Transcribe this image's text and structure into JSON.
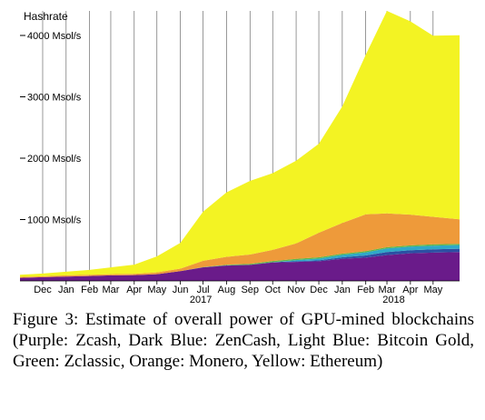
{
  "caption": "Figure 3:  Estimate of overall power of GPU-mined blockchains (Purple: Zcash, Dark Blue: ZenCash, Light Blue: Bitcoin Gold, Green: Zclassic, Orange: Monero, Yellow: Ethereum)",
  "chart_data": {
    "type": "area",
    "stacked": true,
    "ylabel": "Hashrate",
    "ylim": [
      0,
      4400
    ],
    "yticks": [
      1000,
      2000,
      3000,
      4000
    ],
    "ytick_labels": [
      "1000 Msol/s",
      "2000 Msol/s",
      "3000 Msol/s",
      "4000 Msol/s"
    ],
    "grid": "vertical",
    "x_start": "2016-11-01",
    "x_end": "2018-06-05",
    "x_ticks": [
      {
        "date": "2016-12-01",
        "label": "Dec"
      },
      {
        "date": "2017-01-01",
        "label": "Jan"
      },
      {
        "date": "2017-02-01",
        "label": "Feb"
      },
      {
        "date": "2017-03-01",
        "label": "Mar"
      },
      {
        "date": "2017-04-01",
        "label": "Apr"
      },
      {
        "date": "2017-05-01",
        "label": "May"
      },
      {
        "date": "2017-06-01",
        "label": "Jun"
      },
      {
        "date": "2017-07-01",
        "label": "Jul"
      },
      {
        "date": "2017-08-01",
        "label": "Aug"
      },
      {
        "date": "2017-09-01",
        "label": "Sep"
      },
      {
        "date": "2017-10-01",
        "label": "Oct"
      },
      {
        "date": "2017-11-01",
        "label": "Nov"
      },
      {
        "date": "2017-12-01",
        "label": "Dec"
      },
      {
        "date": "2018-01-01",
        "label": "Jan"
      },
      {
        "date": "2018-02-01",
        "label": "Feb"
      },
      {
        "date": "2018-03-01",
        "label": "Mar"
      },
      {
        "date": "2018-04-01",
        "label": "Apr"
      },
      {
        "date": "2018-05-01",
        "label": "May"
      }
    ],
    "year_labels": [
      {
        "date": "2017-06-28",
        "label": "2017"
      },
      {
        "date": "2018-03-10",
        "label": "2018"
      }
    ],
    "x": [
      "2016-11-01",
      "2016-12-01",
      "2017-01-01",
      "2017-02-01",
      "2017-03-01",
      "2017-04-01",
      "2017-05-01",
      "2017-06-01",
      "2017-07-01",
      "2017-08-01",
      "2017-09-01",
      "2017-10-01",
      "2017-11-01",
      "2017-12-01",
      "2018-01-01",
      "2018-02-01",
      "2018-03-01",
      "2018-04-01",
      "2018-05-01",
      "2018-06-05"
    ],
    "series": [
      {
        "name": "Zcash",
        "color": "#6a1b8a",
        "values": [
          50,
          60,
          70,
          80,
          90,
          95,
          110,
          160,
          220,
          250,
          260,
          300,
          310,
          320,
          360,
          380,
          420,
          450,
          460,
          470
        ]
      },
      {
        "name": "ZenCash",
        "color": "#2c4fa3",
        "values": [
          0,
          0,
          0,
          0,
          0,
          0,
          0,
          0,
          2,
          3,
          4,
          5,
          10,
          15,
          25,
          35,
          50,
          50,
          55,
          55
        ]
      },
      {
        "name": "Bitcoin Gold",
        "color": "#2fa8c8",
        "values": [
          0,
          0,
          0,
          0,
          0,
          0,
          0,
          0,
          0,
          0,
          0,
          0,
          20,
          30,
          40,
          50,
          60,
          60,
          60,
          60
        ]
      },
      {
        "name": "Zclassic",
        "color": "#5fb64a",
        "values": [
          0,
          0,
          0,
          0,
          0,
          0,
          0,
          0,
          5,
          10,
          15,
          20,
          20,
          20,
          20,
          20,
          20,
          20,
          20,
          20
        ]
      },
      {
        "name": "Monero",
        "color": "#ee9a3a",
        "values": [
          15,
          15,
          20,
          20,
          20,
          20,
          30,
          40,
          100,
          130,
          150,
          180,
          250,
          400,
          500,
          600,
          550,
          500,
          450,
          400
        ]
      },
      {
        "name": "Ethereum",
        "color": "#f3f323",
        "values": [
          35,
          45,
          60,
          80,
          110,
          150,
          260,
          420,
          800,
          1050,
          1200,
          1250,
          1350,
          1450,
          1900,
          2600,
          3300,
          3150,
          2950,
          3000
        ]
      }
    ]
  }
}
